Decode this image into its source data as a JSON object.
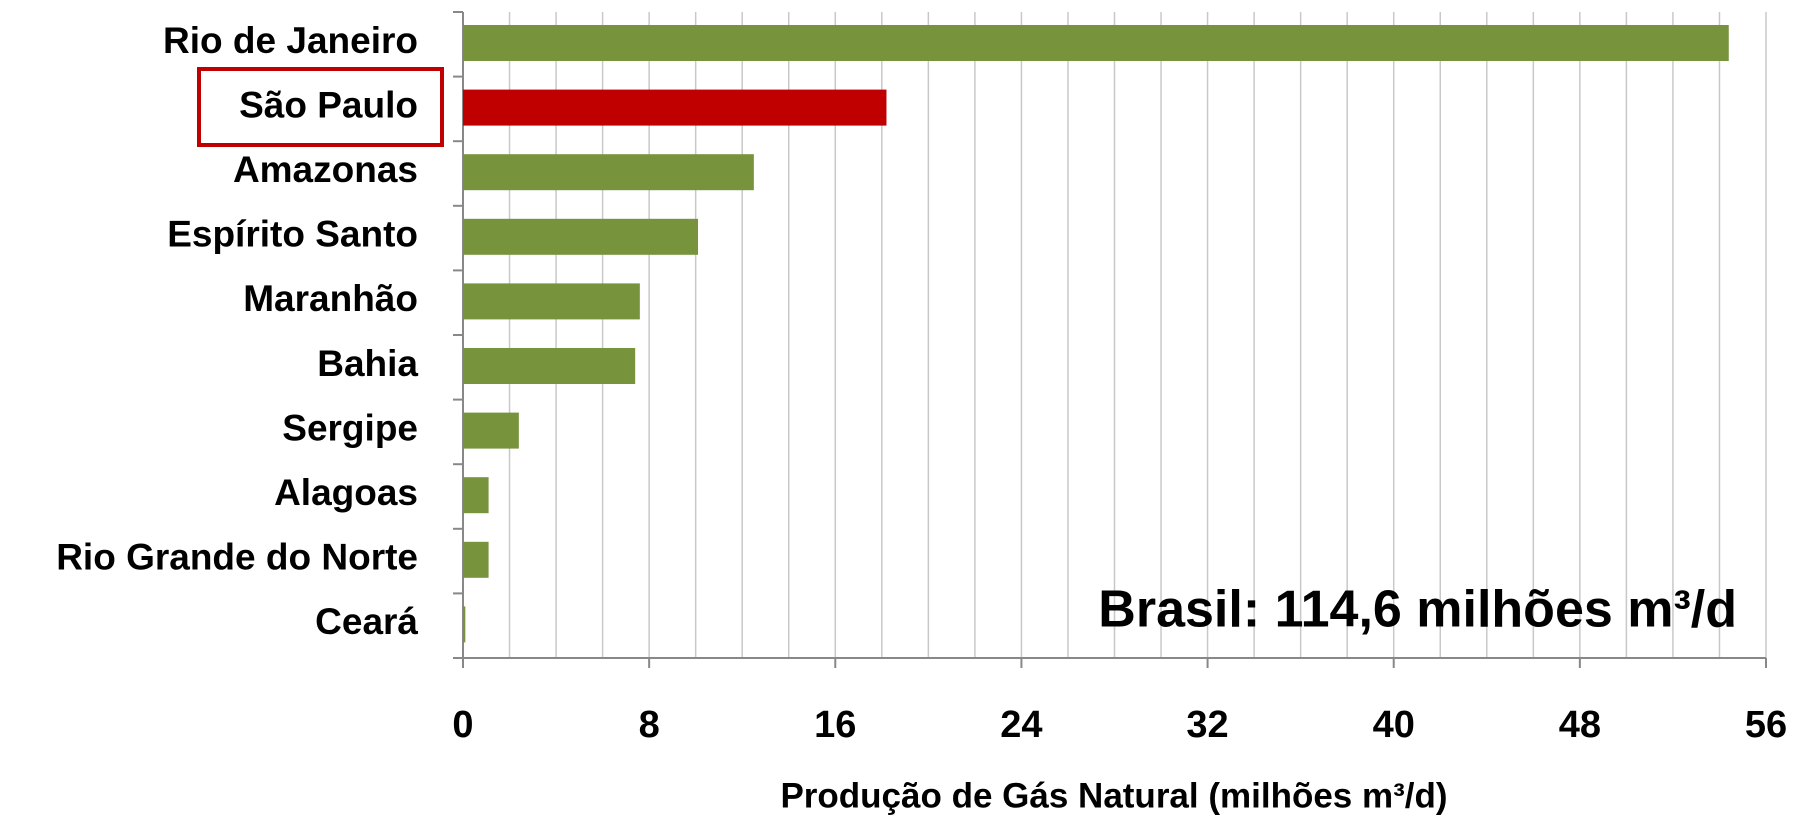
{
  "chart_data": {
    "type": "hbar",
    "xlabel": "Produção de Gás Natural (milhões m³/d)",
    "annotation": "Brasil: 114,6 milhões m³/d",
    "annotation_color": "#77933c",
    "categories": [
      "Rio de Janeiro",
      "São Paulo",
      "Amazonas",
      "Espírito Santo",
      "Maranhão",
      "Bahia",
      "Sergipe",
      "Alagoas",
      "Rio Grande do Norte",
      "Ceará"
    ],
    "values": [
      54.4,
      18.2,
      12.5,
      10.1,
      7.6,
      7.4,
      2.4,
      1.1,
      1.1,
      0.1
    ],
    "colors": [
      "#77933c",
      "#c00000",
      "#77933c",
      "#77933c",
      "#77933c",
      "#77933c",
      "#77933c",
      "#77933c",
      "#77933c",
      "#77933c"
    ],
    "xlim": [
      0,
      56
    ],
    "xticks": [
      0,
      8,
      16,
      24,
      32,
      40,
      48,
      56
    ],
    "xgrid": [
      2,
      4,
      6,
      8,
      10,
      12,
      14,
      16,
      18,
      20,
      22,
      24,
      26,
      28,
      30,
      32,
      34,
      36,
      38,
      40,
      42,
      44,
      46,
      48,
      50,
      52,
      54,
      56
    ],
    "grid": true
  }
}
